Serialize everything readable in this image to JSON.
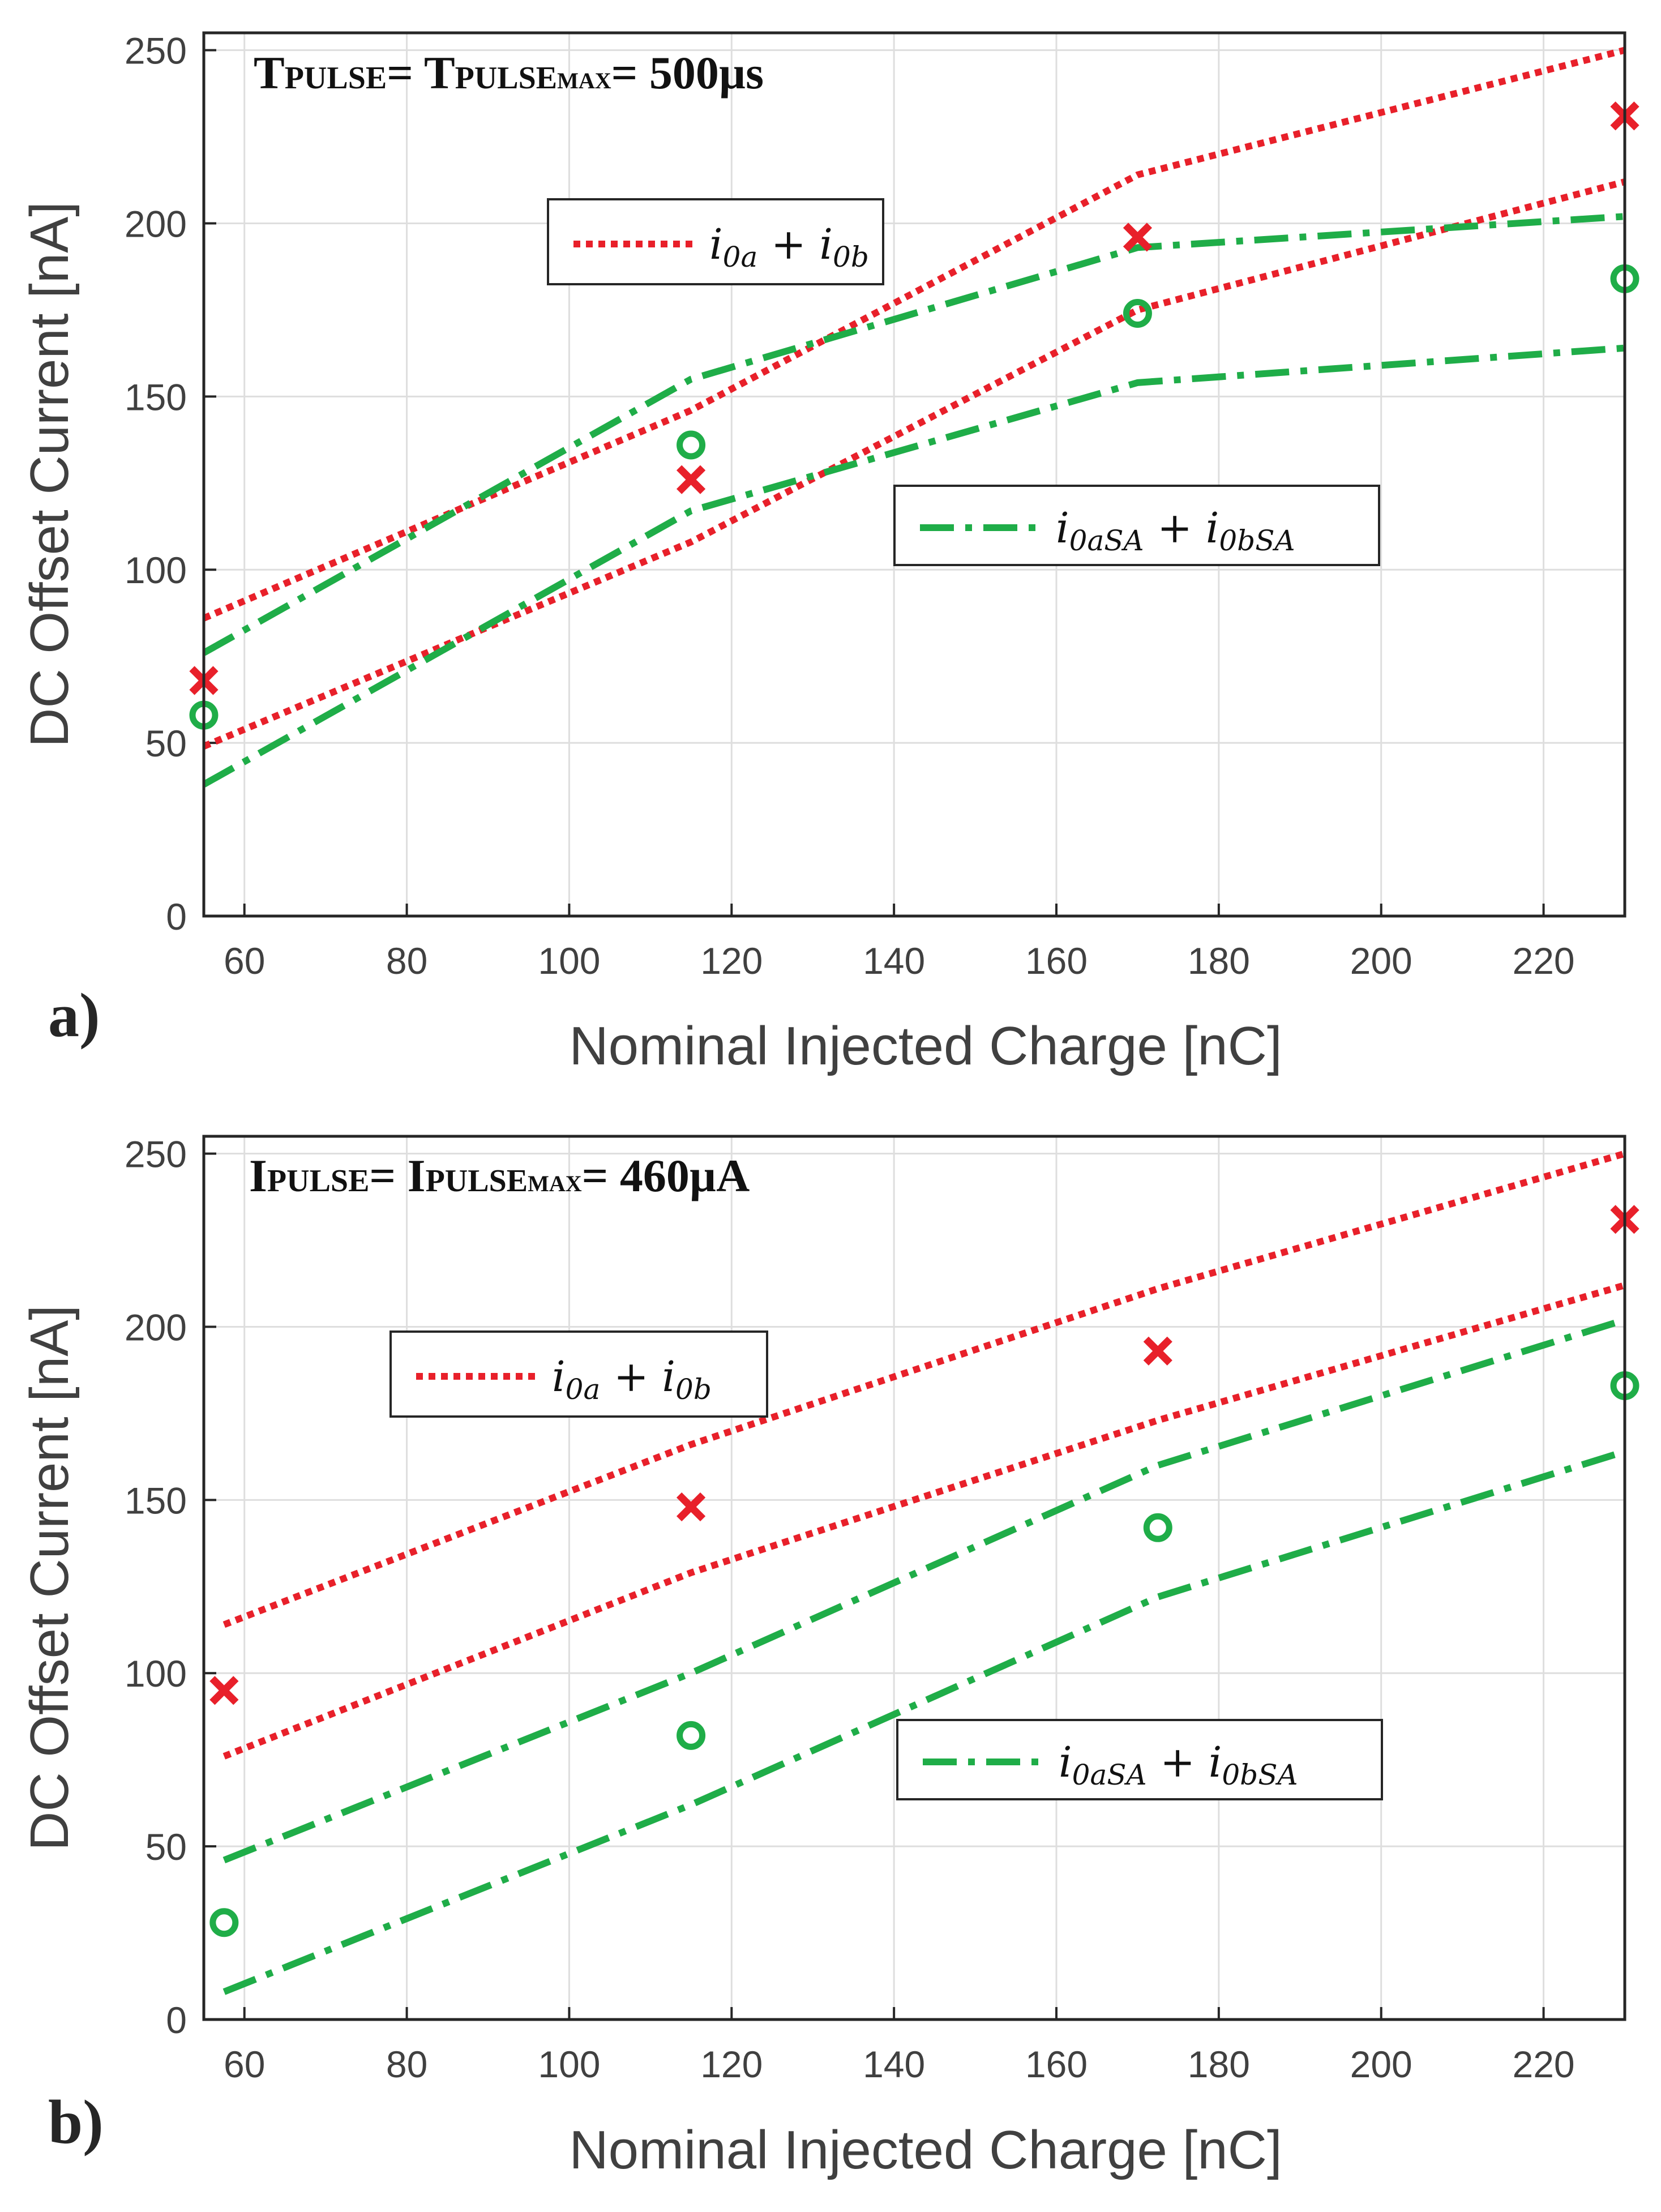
{
  "colors": {
    "red": "#e8202a",
    "green": "#1fad48",
    "axis": "#262626",
    "grid": "#dedede",
    "text": "#404040"
  },
  "chart_data": [
    {
      "panel": "a)",
      "type": "line",
      "title": "TPULSE= TPULSEMAX= 500µs",
      "title_parts": [
        {
          "text": "T",
          "size": "large"
        },
        {
          "text": "PULSE",
          "size": "small"
        },
        {
          "text": "= T",
          "size": "large"
        },
        {
          "text": "PULSE",
          "size": "small"
        },
        {
          "text": "MAX",
          "size": "tiny"
        },
        {
          "text": "= 500µs",
          "size": "large"
        }
      ],
      "xlabel": "Nominal Injected Charge [nC]",
      "ylabel": "DC Offset Current [nA]",
      "xlim": [
        55,
        230
      ],
      "ylim": [
        0,
        255
      ],
      "xticks": [
        60,
        80,
        100,
        120,
        140,
        160,
        180,
        200,
        220
      ],
      "yticks": [
        0,
        50,
        100,
        150,
        200,
        250
      ],
      "grid": true,
      "legends": [
        {
          "label": "i0a + i0b",
          "math": [
            "i",
            "0a",
            " + i",
            "0b"
          ],
          "style": "dotted",
          "color": "red",
          "placement": "upper-center"
        },
        {
          "label": "i0aSA + i0bSA",
          "math": [
            "i",
            "0aSA",
            " + i",
            "0bSA"
          ],
          "style": "dashdot",
          "color": "green",
          "placement": "center-right"
        }
      ],
      "series": [
        {
          "kind": "line",
          "style": "dotted",
          "color": "red",
          "x": [
            55,
            115,
            170,
            230
          ],
          "y": [
            86,
            146,
            214,
            250
          ]
        },
        {
          "kind": "line",
          "style": "dotted",
          "color": "red",
          "x": [
            55,
            115,
            170,
            230
          ],
          "y": [
            49,
            108,
            175,
            212
          ]
        },
        {
          "kind": "line",
          "style": "dashdot",
          "color": "green",
          "x": [
            55,
            115,
            170,
            230
          ],
          "y": [
            76,
            155,
            193,
            202
          ]
        },
        {
          "kind": "line",
          "style": "dashdot",
          "color": "green",
          "x": [
            55,
            115,
            170,
            230
          ],
          "y": [
            38,
            117,
            154,
            164
          ]
        },
        {
          "kind": "marker",
          "marker": "x",
          "color": "red",
          "x": [
            55,
            115,
            170,
            230
          ],
          "y": [
            68,
            126,
            196,
            231
          ]
        },
        {
          "kind": "marker",
          "marker": "o",
          "color": "green",
          "x": [
            55,
            115,
            170,
            230
          ],
          "y": [
            58,
            136,
            174,
            184
          ]
        }
      ]
    },
    {
      "panel": "b)",
      "type": "line",
      "title": "IPULSE= IPULSEMAX= 460µA",
      "title_parts": [
        {
          "text": "I",
          "size": "large"
        },
        {
          "text": "PULSE",
          "size": "small"
        },
        {
          "text": "= I",
          "size": "large"
        },
        {
          "text": "PULSE",
          "size": "small"
        },
        {
          "text": "MAX",
          "size": "tiny"
        },
        {
          "text": "= 460µA",
          "size": "large"
        }
      ],
      "xlabel": "Nominal Injected Charge [nC]",
      "ylabel": "DC Offset Current [nA]",
      "xlim": [
        55,
        230
      ],
      "ylim": [
        0,
        255
      ],
      "xticks": [
        60,
        80,
        100,
        120,
        140,
        160,
        180,
        200,
        220
      ],
      "yticks": [
        0,
        50,
        100,
        150,
        200,
        250
      ],
      "grid": true,
      "legends": [
        {
          "label": "i0a + i0b",
          "math": [
            "i",
            "0a",
            " + i",
            "0b"
          ],
          "style": "dotted",
          "color": "red",
          "placement": "upper-left"
        },
        {
          "label": "i0aSA + i0bSA",
          "math": [
            "i",
            "0aSA",
            " + i",
            "0bSA"
          ],
          "style": "dashdot",
          "color": "green",
          "placement": "lower-right"
        }
      ],
      "series": [
        {
          "kind": "line",
          "style": "dotted",
          "color": "red",
          "x": [
            57.5,
            115,
            172.5,
            230
          ],
          "y": [
            114,
            166,
            211,
            250
          ]
        },
        {
          "kind": "line",
          "style": "dotted",
          "color": "red",
          "x": [
            57.5,
            115,
            172.5,
            230
          ],
          "y": [
            76,
            129,
            173,
            212
          ]
        },
        {
          "kind": "line",
          "style": "dashdot",
          "color": "green",
          "x": [
            57.5,
            115,
            172.5,
            230
          ],
          "y": [
            46,
            100,
            160,
            202
          ]
        },
        {
          "kind": "line",
          "style": "dashdot",
          "color": "green",
          "x": [
            57.5,
            115,
            172.5,
            230
          ],
          "y": [
            8,
            62,
            122,
            164
          ]
        },
        {
          "kind": "marker",
          "marker": "x",
          "color": "red",
          "x": [
            57.5,
            115,
            172.5,
            230
          ],
          "y": [
            95,
            148,
            193,
            231
          ]
        },
        {
          "kind": "marker",
          "marker": "o",
          "color": "green",
          "x": [
            57.5,
            115,
            172.5,
            230
          ],
          "y": [
            28,
            82,
            142,
            183
          ]
        }
      ]
    }
  ]
}
